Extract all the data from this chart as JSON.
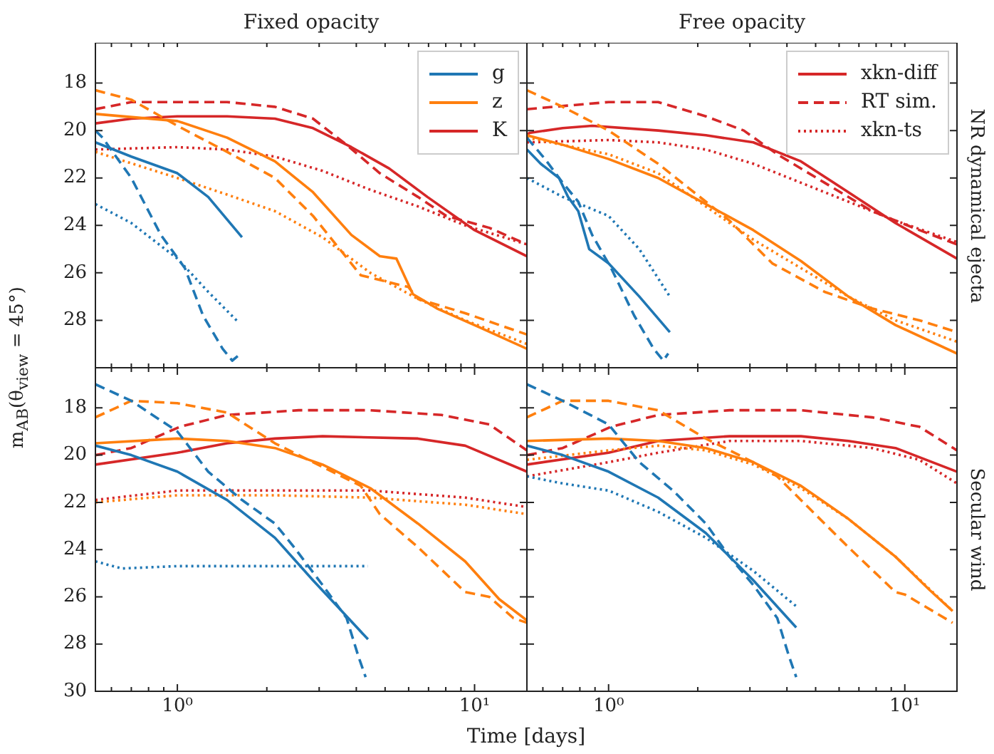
{
  "chart_data": [
    {
      "type": "line",
      "title": "Fixed opacity",
      "ylabel": "m$_{AB}$(θ$_{view}$ = 45°)",
      "log": "x",
      "grid": false,
      "legend": "top right",
      "marker": "none",
      "tick_labels": "y",
      "xlim": [
        0.53,
        15
      ],
      "ylim": [
        30,
        16.3
      ],
      "xticks": [
        {
          "value": 0.6,
          "label": null
        },
        {
          "value": 0.7,
          "label": null
        },
        {
          "value": 0.8,
          "label": null
        },
        {
          "value": 0.9,
          "label": null
        },
        {
          "value": 1,
          "label": null
        },
        {
          "value": 2,
          "label": null
        },
        {
          "value": 3,
          "label": null
        },
        {
          "value": 4,
          "label": null
        },
        {
          "value": 5,
          "label": null
        },
        {
          "value": 6,
          "label": null
        },
        {
          "value": 7,
          "label": null
        },
        {
          "value": 8,
          "label": null
        },
        {
          "value": 9,
          "label": null
        },
        {
          "value": 10,
          "label": null
        }
      ],
      "yticks": [
        18,
        20,
        22,
        24,
        26,
        28
      ],
      "series": [
        {
          "name": "g",
          "color": "#1f77b4",
          "line_style": "solid",
          "x": [
            0.53,
            0.7,
            1,
            1.27,
            1.65
          ],
          "values": [
            20.5,
            21.1,
            21.8,
            22.8,
            24.5
          ]
        },
        {
          "color": "#1f77b4",
          "line_style": "dashed",
          "x": [
            0.53,
            0.56,
            0.7,
            0.88,
            1.06,
            1.22,
            1.42,
            1.53,
            1.6
          ],
          "values": [
            20.0,
            20.3,
            22.0,
            24.4,
            25.8,
            27.8,
            29.2,
            29.7,
            29.5
          ]
        },
        {
          "color": "#1f77b4",
          "line_style": "dotted",
          "x": [
            0.53,
            0.7,
            1,
            1.27,
            1.61
          ],
          "values": [
            23.1,
            23.9,
            25.4,
            26.8,
            28.1
          ]
        },
        {
          "name": "z",
          "color": "#ff7f0e",
          "line_style": "solid",
          "x": [
            0.53,
            1,
            1.47,
            2.13,
            2.86,
            3.85,
            4.8,
            5.46,
            6.2,
            7.47,
            10.4,
            15
          ],
          "values": [
            19.3,
            19.6,
            20.3,
            21.3,
            22.6,
            24.4,
            25.3,
            25.4,
            26.9,
            27.5,
            28.3,
            29.2
          ]
        },
        {
          "color": "#ff7f0e",
          "line_style": "dashed",
          "x": [
            0.53,
            0.7,
            1,
            1.47,
            2.13,
            2.86,
            4.14,
            5.99,
            6.45,
            9.3,
            15
          ],
          "values": [
            18.3,
            18.7,
            19.8,
            20.9,
            22.0,
            23.6,
            26.1,
            26.6,
            27.1,
            27.7,
            28.6
          ]
        },
        {
          "color": "#ff7f0e",
          "line_style": "dotted",
          "x": [
            0.53,
            1,
            1.47,
            2.13,
            3.08,
            4.46,
            6.45,
            9.3,
            15
          ],
          "values": [
            20.9,
            22.0,
            22.7,
            23.4,
            24.5,
            26.0,
            27.1,
            28.0,
            29.0
          ]
        },
        {
          "name": "K",
          "color": "#d62728",
          "line_style": "solid",
          "x": [
            0.53,
            0.7,
            1,
            1.47,
            2.13,
            2.86,
            3.85,
            5.16,
            6.94,
            10,
            15
          ],
          "values": [
            19.7,
            19.5,
            19.4,
            19.4,
            19.5,
            19.9,
            20.7,
            21.6,
            22.8,
            24.2,
            25.3
          ]
        },
        {
          "color": "#d62728",
          "line_style": "dashed",
          "x": [
            0.53,
            0.7,
            1,
            1.47,
            2.13,
            2.86,
            3.71,
            4.8,
            6.45,
            8.04,
            11.2,
            15
          ],
          "values": [
            19.1,
            18.8,
            18.8,
            18.8,
            19.0,
            19.5,
            20.6,
            21.8,
            22.8,
            23.6,
            24.1,
            24.8
          ]
        },
        {
          "color": "#d62728",
          "line_style": "dotted",
          "x": [
            0.53,
            1,
            1.47,
            2.13,
            3.08,
            4.46,
            6.45,
            9.3,
            15
          ],
          "values": [
            20.8,
            20.7,
            20.8,
            21.1,
            21.7,
            22.5,
            23.2,
            24.0,
            24.8
          ]
        }
      ]
    },
    {
      "type": "line",
      "title": "Free opacity",
      "y2label": "NR dynamical ejecta",
      "log": "x",
      "grid": false,
      "legend": "top right",
      "marker": "none",
      "tick_labels": false,
      "xlim": [
        0.53,
        15
      ],
      "ylim": [
        30,
        16.3
      ],
      "xticks": [
        {
          "value": 0.6,
          "label": null
        },
        {
          "value": 0.7,
          "label": null
        },
        {
          "value": 0.8,
          "label": null
        },
        {
          "value": 0.9,
          "label": null
        },
        {
          "value": 1,
          "label": null
        },
        {
          "value": 2,
          "label": null
        },
        {
          "value": 3,
          "label": null
        },
        {
          "value": 4,
          "label": null
        },
        {
          "value": 5,
          "label": null
        },
        {
          "value": 6,
          "label": null
        },
        {
          "value": 7,
          "label": null
        },
        {
          "value": 8,
          "label": null
        },
        {
          "value": 9,
          "label": null
        },
        {
          "value": 10,
          "label": null
        }
      ],
      "yticks": [
        {
          "value": 18,
          "label": null
        },
        {
          "value": 20,
          "label": null
        },
        {
          "value": 22,
          "label": null
        },
        {
          "value": 24,
          "label": null
        },
        {
          "value": 26,
          "label": null
        },
        {
          "value": 28,
          "label": null
        }
      ],
      "series": [
        {
          "color": "#1f77b4",
          "line_style": "solid",
          "x": [
            0.53,
            0.59,
            0.68,
            0.73,
            0.79,
            0.86,
            1,
            1.27,
            1.61
          ],
          "values": [
            20.8,
            21.4,
            22.0,
            22.8,
            23.4,
            25.0,
            25.6,
            27.0,
            28.5
          ]
        },
        {
          "color": "#1f77b4",
          "line_style": "dashed",
          "x": [
            0.53,
            0.61,
            0.7,
            0.79,
            0.88,
            1.02,
            1.22,
            1.42,
            1.53,
            1.59
          ],
          "values": [
            20.3,
            21.2,
            22.2,
            23.0,
            24.4,
            25.8,
            27.8,
            29.2,
            29.7,
            29.4
          ]
        },
        {
          "color": "#1f77b4",
          "line_style": "dotted",
          "x": [
            0.53,
            0.7,
            1,
            1.27,
            1.61
          ],
          "values": [
            22.0,
            22.8,
            23.6,
            25.0,
            27.0
          ]
        },
        {
          "color": "#ff7f0e",
          "line_style": "solid",
          "x": [
            0.53,
            0.7,
            1,
            1.47,
            2.13,
            3.08,
            4.46,
            6.45,
            9.3,
            15
          ],
          "values": [
            20.2,
            20.6,
            21.2,
            22.0,
            23.1,
            24.2,
            25.5,
            27.0,
            28.2,
            29.4
          ]
        },
        {
          "color": "#ff7f0e",
          "line_style": "dashed",
          "x": [
            0.53,
            0.7,
            1,
            1.47,
            2.13,
            2.56,
            3.57,
            5.36,
            7.75,
            11.2,
            15
          ],
          "values": [
            18.3,
            19.0,
            20.0,
            21.4,
            23.0,
            23.8,
            25.6,
            26.8,
            27.5,
            28.0,
            28.5
          ]
        },
        {
          "color": "#ff7f0e",
          "line_style": "dotted",
          "x": [
            0.53,
            1,
            1.47,
            2.13,
            3.08,
            4.46,
            6.45,
            9.3,
            15
          ],
          "values": [
            20.3,
            21.0,
            21.8,
            23.2,
            24.6,
            25.8,
            27.0,
            28.0,
            28.9
          ]
        },
        {
          "name": "xkn-diff",
          "color": "#d62728",
          "line_style": "solid",
          "x": [
            0.53,
            0.54,
            0.7,
            0.88,
            1.47,
            2.13,
            3.08,
            4.46,
            6.45,
            9.3,
            15
          ],
          "values": [
            20.2,
            20.1,
            19.9,
            19.8,
            20.0,
            20.2,
            20.5,
            21.3,
            22.6,
            23.9,
            25.4
          ]
        },
        {
          "name": "RT sim.",
          "color": "#d62728",
          "line_style": "dashed",
          "x": [
            0.53,
            1,
            1.47,
            2.13,
            2.86,
            3.71,
            5.36,
            7.75,
            11.2,
            15
          ],
          "values": [
            19.1,
            18.8,
            18.8,
            19.4,
            20.0,
            21.0,
            22.2,
            23.4,
            24.2,
            24.8
          ]
        },
        {
          "name": "xkn-ts",
          "color": "#d62728",
          "line_style": "dotted",
          "x": [
            0.53,
            1,
            1.47,
            2.13,
            3.08,
            4.46,
            6.45,
            9.3,
            15
          ],
          "values": [
            20.5,
            20.4,
            20.5,
            20.8,
            21.4,
            22.2,
            23.0,
            23.8,
            24.7
          ]
        }
      ]
    },
    {
      "type": "line",
      "xlabel": "Time [days]",
      "log": "x",
      "grid": false,
      "marker": "none",
      "xlim": [
        0.53,
        15
      ],
      "ylim": [
        30,
        16.3
      ],
      "xticks": [
        {
          "value": 0.6,
          "label": null
        },
        {
          "value": 0.7,
          "label": null
        },
        {
          "value": 0.8,
          "label": null
        },
        {
          "value": 0.9,
          "label": null
        },
        {
          "value": 1,
          "label": "10⁰"
        },
        {
          "value": 2,
          "label": null
        },
        {
          "value": 3,
          "label": null
        },
        {
          "value": 4,
          "label": null
        },
        {
          "value": 5,
          "label": null
        },
        {
          "value": 6,
          "label": null
        },
        {
          "value": 7,
          "label": null
        },
        {
          "value": 8,
          "label": null
        },
        {
          "value": 9,
          "label": null
        },
        {
          "value": 10,
          "label": "10¹"
        }
      ],
      "yticks": [
        18,
        20,
        22,
        24,
        26,
        28,
        30
      ],
      "series": [
        {
          "color": "#1f77b4",
          "line_style": "solid",
          "x": [
            0.53,
            0.7,
            1,
            1.47,
            2.13,
            2.86,
            3.57,
            4.38
          ],
          "values": [
            19.6,
            20.0,
            20.7,
            21.9,
            23.5,
            25.3,
            26.6,
            27.8
          ]
        },
        {
          "color": "#1f77b4",
          "line_style": "dashed",
          "x": [
            0.53,
            0.7,
            1,
            1.27,
            1.65,
            2.13,
            2.47,
            3.08,
            3.71,
            4.06,
            4.3
          ],
          "values": [
            17.0,
            17.7,
            19.0,
            20.7,
            21.9,
            22.9,
            23.9,
            25.5,
            26.9,
            28.5,
            29.4
          ]
        },
        {
          "color": "#1f77b4",
          "line_style": "dotted",
          "x": [
            0.53,
            0.65,
            1,
            2.13,
            4.38
          ],
          "values": [
            24.5,
            24.8,
            24.7,
            24.7,
            24.7
          ]
        },
        {
          "color": "#ff7f0e",
          "line_style": "solid",
          "x": [
            0.53,
            1,
            1.47,
            2.13,
            3.08,
            4.46,
            6.45,
            9.3,
            12.1,
            15
          ],
          "values": [
            19.5,
            19.3,
            19.4,
            19.7,
            20.4,
            21.4,
            22.9,
            24.5,
            26.1,
            27.0
          ]
        },
        {
          "color": "#ff7f0e",
          "line_style": "dashed",
          "x": [
            0.53,
            0.7,
            1,
            1.47,
            2.13,
            3.08,
            4.14,
            4.8,
            6.45,
            9.3,
            11.2,
            13.5,
            15
          ],
          "values": [
            18.4,
            17.7,
            17.8,
            18.2,
            19.5,
            20.5,
            21.3,
            22.5,
            23.9,
            25.8,
            26.0,
            26.9,
            27.1
          ]
        },
        {
          "color": "#ff7f0e",
          "line_style": "dotted",
          "x": [
            0.53,
            1,
            2.13,
            4.46,
            9.3,
            15
          ],
          "values": [
            22.0,
            21.7,
            21.7,
            21.8,
            22.1,
            22.5
          ]
        },
        {
          "color": "#d62728",
          "line_style": "solid",
          "x": [
            0.53,
            1,
            1.47,
            2.13,
            3.08,
            6.45,
            9.3,
            15
          ],
          "values": [
            20.4,
            19.9,
            19.5,
            19.3,
            19.2,
            19.3,
            19.6,
            20.7
          ]
        },
        {
          "color": "#d62728",
          "line_style": "dashed",
          "x": [
            0.53,
            0.7,
            1.02,
            1.47,
            2.56,
            4.46,
            7.75,
            11.2,
            15
          ],
          "values": [
            20.0,
            19.7,
            18.8,
            18.3,
            18.1,
            18.1,
            18.3,
            18.7,
            19.8
          ]
        },
        {
          "color": "#d62728",
          "line_style": "dotted",
          "x": [
            0.53,
            1,
            2.13,
            4.46,
            9.3,
            15
          ],
          "values": [
            21.9,
            21.5,
            21.5,
            21.5,
            21.8,
            22.2
          ]
        }
      ]
    },
    {
      "type": "line",
      "y2label": "Secular wind",
      "log": "x",
      "grid": false,
      "marker": "none",
      "tick_labels": "x",
      "xlim": [
        0.53,
        15
      ],
      "ylim": [
        30,
        16.3
      ],
      "xticks": [
        {
          "value": 0.6,
          "label": null
        },
        {
          "value": 0.7,
          "label": null
        },
        {
          "value": 0.8,
          "label": null
        },
        {
          "value": 0.9,
          "label": null
        },
        {
          "value": 1,
          "label": "10⁰"
        },
        {
          "value": 2,
          "label": null
        },
        {
          "value": 3,
          "label": null
        },
        {
          "value": 4,
          "label": null
        },
        {
          "value": 5,
          "label": null
        },
        {
          "value": 6,
          "label": null
        },
        {
          "value": 7,
          "label": null
        },
        {
          "value": 8,
          "label": null
        },
        {
          "value": 9,
          "label": null
        },
        {
          "value": 10,
          "label": "10¹"
        }
      ],
      "yticks": [
        18,
        20,
        22,
        24,
        26,
        28,
        30
      ],
      "series": [
        {
          "color": "#1f77b4",
          "line_style": "solid",
          "x": [
            0.53,
            0.7,
            1,
            1.47,
            2.13,
            3.08,
            4.3
          ],
          "values": [
            19.6,
            20.0,
            20.7,
            21.8,
            23.3,
            25.3,
            27.3
          ]
        },
        {
          "color": "#1f77b4",
          "line_style": "dashed",
          "x": [
            0.53,
            0.7,
            1,
            1.27,
            1.65,
            2.13,
            2.56,
            3.08,
            3.71,
            4.06,
            4.3
          ],
          "values": [
            17.0,
            17.7,
            18.7,
            20.3,
            21.5,
            22.9,
            24.3,
            25.5,
            26.9,
            28.5,
            29.4
          ]
        },
        {
          "color": "#1f77b4",
          "line_style": "dotted",
          "x": [
            0.53,
            0.7,
            1,
            1.47,
            2.13,
            3.08,
            4.3
          ],
          "values": [
            20.9,
            21.2,
            21.5,
            22.4,
            23.5,
            24.9,
            26.4
          ]
        },
        {
          "color": "#ff7f0e",
          "line_style": "solid",
          "x": [
            0.53,
            1,
            1.47,
            2.13,
            3.08,
            4.46,
            6.45,
            9.3,
            12.1,
            14.5
          ],
          "values": [
            19.4,
            19.3,
            19.4,
            19.7,
            20.3,
            21.3,
            22.7,
            24.3,
            25.7,
            26.6
          ]
        },
        {
          "color": "#ff7f0e",
          "line_style": "dashed",
          "x": [
            0.53,
            0.7,
            1,
            1.47,
            2.13,
            3.08,
            3.71,
            4.8,
            6.45,
            9.3,
            10.0,
            14.5
          ],
          "values": [
            18.4,
            17.7,
            17.7,
            18.1,
            19.3,
            20.3,
            20.9,
            22.3,
            23.9,
            25.8,
            25.9,
            27.1
          ]
        },
        {
          "color": "#ff7f0e",
          "line_style": "dotted",
          "x": [
            0.53,
            1,
            1.47,
            2.13,
            3.08,
            4.46,
            6.45,
            9.3,
            14.5
          ],
          "values": [
            20.2,
            19.8,
            19.6,
            19.8,
            20.4,
            21.4,
            22.7,
            24.3,
            26.6
          ]
        },
        {
          "color": "#d62728",
          "line_style": "solid",
          "x": [
            0.53,
            1,
            1.47,
            2.56,
            4.46,
            6.45,
            9.3,
            15
          ],
          "values": [
            20.4,
            19.9,
            19.4,
            19.2,
            19.2,
            19.4,
            19.7,
            20.7
          ]
        },
        {
          "color": "#d62728",
          "line_style": "dashed",
          "x": [
            0.53,
            0.7,
            1.02,
            1.47,
            2.56,
            4.46,
            7.75,
            11.2,
            15
          ],
          "values": [
            20.0,
            19.7,
            18.8,
            18.3,
            18.1,
            18.1,
            18.4,
            18.8,
            19.8
          ]
        },
        {
          "color": "#d62728",
          "line_style": "dotted",
          "x": [
            0.53,
            1,
            1.47,
            2.56,
            4.46,
            7.75,
            11.2,
            15
          ],
          "values": [
            20.9,
            20.3,
            19.9,
            19.4,
            19.4,
            19.7,
            20.2,
            21.2
          ]
        }
      ]
    }
  ]
}
